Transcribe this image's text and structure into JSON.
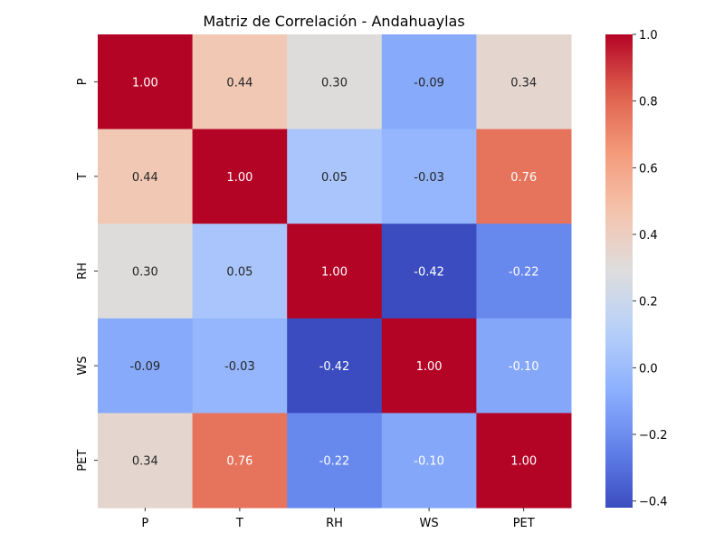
{
  "chart_data": {
    "type": "heatmap",
    "title": "Matriz de Correlación - Andahuaylas",
    "xlabel": "",
    "ylabel": "",
    "x_categories": [
      "P",
      "T",
      "RH",
      "WS",
      "PET"
    ],
    "y_categories": [
      "P",
      "T",
      "RH",
      "WS",
      "PET"
    ],
    "values": [
      [
        1.0,
        0.44,
        0.3,
        -0.09,
        0.34
      ],
      [
        0.44,
        1.0,
        0.05,
        -0.03,
        0.76
      ],
      [
        0.3,
        0.05,
        1.0,
        -0.42,
        -0.22
      ],
      [
        -0.09,
        -0.03,
        -0.42,
        1.0,
        -0.1
      ],
      [
        0.34,
        0.76,
        -0.22,
        -0.1,
        1.0
      ]
    ],
    "cell_labels": [
      [
        "1.00",
        "0.44",
        "0.30",
        "-0.09",
        "0.34"
      ],
      [
        "0.44",
        "1.00",
        "0.05",
        "-0.03",
        "0.76"
      ],
      [
        "0.30",
        "0.05",
        "1.00",
        "-0.42",
        "-0.22"
      ],
      [
        "-0.09",
        "-0.03",
        "-0.42",
        "1.00",
        "-0.10"
      ],
      [
        "0.34",
        "0.76",
        "-0.22",
        "-0.10",
        "1.00"
      ]
    ],
    "colormap": "coolwarm",
    "color_range": [
      -0.42,
      1.0
    ],
    "colorbar_ticks": [
      1.0,
      0.8,
      0.6,
      0.4,
      0.2,
      0.0,
      -0.2,
      -0.4
    ],
    "colorbar_tick_labels": [
      "1.0",
      "0.8",
      "0.6",
      "0.4",
      "0.2",
      "0.0",
      "−0.2",
      "−0.4"
    ],
    "grid": false,
    "legend": "colorbar-right"
  }
}
